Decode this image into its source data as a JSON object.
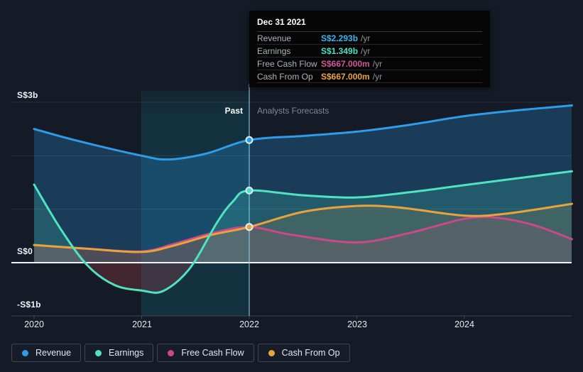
{
  "colors": {
    "page_bg": "#151b26",
    "zero_line": "#eef3f6",
    "axis_line": "#3d4654",
    "gridline": "rgba(255,255,255,0.09)",
    "divider_line": "rgba(150,205,230,0.7)",
    "negative_fill": "rgba(222,72,82,0.22)"
  },
  "tooltip": {
    "date": "Dec 31 2021",
    "rows": [
      {
        "label": "Revenue",
        "value": "S$2.293b",
        "suffix": "/yr",
        "color": "#3cb3f0"
      },
      {
        "label": "Earnings",
        "value": "S$1.349b",
        "suffix": "/yr",
        "color": "#49e2c2"
      },
      {
        "label": "Free Cash Flow",
        "value": "S$667.000m",
        "suffix": "/yr",
        "color": "#d25697"
      },
      {
        "label": "Cash From Op",
        "value": "S$667.000m",
        "suffix": "/yr",
        "color": "#eaa43c"
      }
    ]
  },
  "chart_data": {
    "type": "line",
    "title": "",
    "y_unit": "S$ billions per year",
    "past_label": "Past",
    "forecast_label": "Analysts Forecasts",
    "past_until": 2022,
    "highlight_band": [
      2021,
      2022
    ],
    "marker_x": 2022,
    "x_domain": [
      2020,
      2025
    ],
    "ylim": [
      -1.33,
      3.21
    ],
    "x_ticks": [
      2020,
      2021,
      2022,
      2023,
      2024
    ],
    "x_tick_labels": [
      "2020",
      "2021",
      "2022",
      "2023",
      "2024"
    ],
    "y_gridlines": [
      3,
      2,
      1
    ],
    "y_ticks": [
      {
        "value": 3,
        "label": "S$3b"
      },
      {
        "value": 0,
        "label": "S$0"
      },
      {
        "value": -1,
        "label": "-S$1b"
      }
    ],
    "series": [
      {
        "name": "Revenue",
        "color": "#2e9ce9",
        "fill": "rgba(43,155,232,0.26)",
        "points": [
          [
            2020,
            2.5
          ],
          [
            2020.4,
            2.28
          ],
          [
            2021,
            2.0
          ],
          [
            2021.25,
            1.93
          ],
          [
            2021.6,
            2.04
          ],
          [
            2022,
            2.293
          ],
          [
            2022.5,
            2.37
          ],
          [
            2023,
            2.45
          ],
          [
            2023.5,
            2.58
          ],
          [
            2024,
            2.74
          ],
          [
            2024.5,
            2.85
          ],
          [
            2025,
            2.94
          ]
        ]
      },
      {
        "name": "Earnings",
        "color": "#4fe3c1",
        "fill": "rgba(80,226,195,0.18)",
        "fill_negative": "rgba(222,72,82,0.22)",
        "points": [
          [
            2020,
            1.46
          ],
          [
            2020.25,
            0.62
          ],
          [
            2020.5,
            -0.06
          ],
          [
            2020.75,
            -0.42
          ],
          [
            2021,
            -0.52
          ],
          [
            2021.2,
            -0.53
          ],
          [
            2021.45,
            -0.1
          ],
          [
            2021.7,
            0.75
          ],
          [
            2021.85,
            1.15
          ],
          [
            2022,
            1.349
          ],
          [
            2022.5,
            1.26
          ],
          [
            2023,
            1.22
          ],
          [
            2023.5,
            1.32
          ],
          [
            2024,
            1.45
          ],
          [
            2024.5,
            1.58
          ],
          [
            2025,
            1.71
          ]
        ]
      },
      {
        "name": "Free Cash Flow",
        "color": "#c9498a",
        "fill": "rgba(201,74,134,0.15)",
        "points": [
          [
            2020,
            0.33
          ],
          [
            2020.5,
            0.26
          ],
          [
            2021,
            0.21
          ],
          [
            2021.3,
            0.35
          ],
          [
            2021.65,
            0.55
          ],
          [
            2022,
            0.667
          ],
          [
            2022.4,
            0.52
          ],
          [
            2023,
            0.38
          ],
          [
            2023.5,
            0.56
          ],
          [
            2024,
            0.82
          ],
          [
            2024.3,
            0.84
          ],
          [
            2024.65,
            0.7
          ],
          [
            2025,
            0.44
          ]
        ]
      },
      {
        "name": "Cash From Op",
        "color": "#e8a33d",
        "fill": "rgba(232,163,61,0.15)",
        "points": [
          [
            2020,
            0.33
          ],
          [
            2020.5,
            0.26
          ],
          [
            2021,
            0.2
          ],
          [
            2021.3,
            0.32
          ],
          [
            2021.65,
            0.52
          ],
          [
            2022,
            0.667
          ],
          [
            2022.5,
            0.95
          ],
          [
            2023,
            1.06
          ],
          [
            2023.4,
            1.03
          ],
          [
            2024,
            0.88
          ],
          [
            2024.4,
            0.92
          ],
          [
            2025,
            1.1
          ]
        ]
      }
    ]
  }
}
